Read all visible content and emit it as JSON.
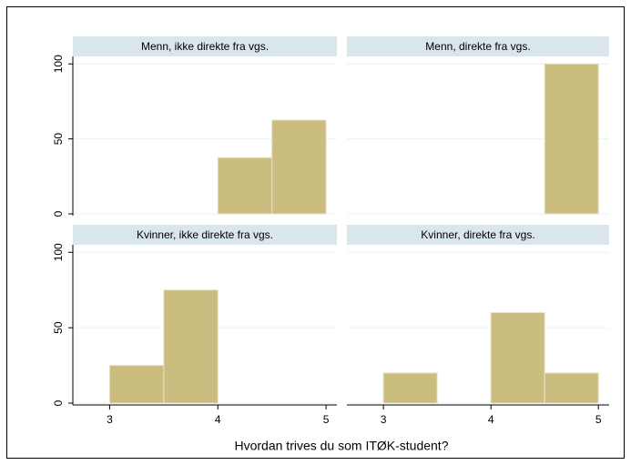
{
  "xlabel": "Hvordan trives du som ITØK-student?",
  "chart_data": [
    {
      "type": "histogram",
      "title": "Menn, ikke direkte fra vgs.",
      "bins": [
        4,
        4.5,
        5
      ],
      "values": [
        37.5,
        62.5
      ],
      "color": "#cbbd80",
      "xlim": [
        2.66,
        5.1
      ],
      "ylim": [
        -1.2,
        105
      ],
      "yticks": [
        0,
        50,
        100
      ],
      "grid": true
    },
    {
      "type": "histogram",
      "title": "Menn, direkte fra vgs.",
      "bins": [
        4.5,
        5
      ],
      "values": [
        100
      ],
      "color": "#cbbd80",
      "xlim": [
        2.66,
        5.1
      ],
      "ylim": [
        -1.2,
        105
      ],
      "yticks": [
        0,
        50,
        100
      ],
      "grid": true
    },
    {
      "type": "histogram",
      "title": "Kvinner, ikke direkte fra vgs.",
      "bins": [
        3,
        3.5,
        4
      ],
      "values": [
        25,
        75
      ],
      "color": "#cbbd80",
      "xlim": [
        2.66,
        5.1
      ],
      "ylim": [
        -1.2,
        105
      ],
      "yticks": [
        0,
        50,
        100
      ],
      "xticks": [
        3,
        4,
        5
      ],
      "grid": true
    },
    {
      "type": "histogram",
      "title": "Kvinner, direkte fra vgs.",
      "bins": [
        3,
        3.5,
        4,
        4.5,
        5
      ],
      "values": [
        20,
        0,
        60,
        20
      ],
      "color": "#cbbd80",
      "xlim": [
        2.66,
        5.1
      ],
      "ylim": [
        -1.2,
        105
      ],
      "yticks": [
        0,
        50,
        100
      ],
      "xticks": [
        3,
        4,
        5
      ],
      "grid": true
    }
  ]
}
